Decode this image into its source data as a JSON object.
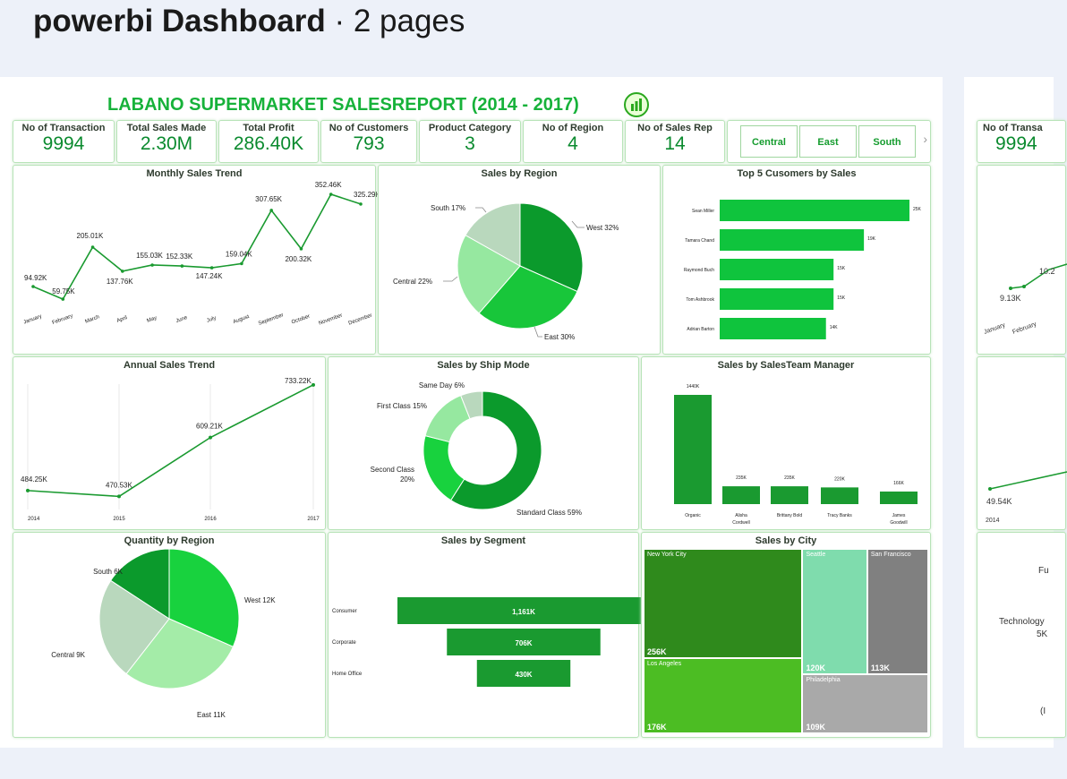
{
  "header": {
    "name": "powerbi Dashboard",
    "dot": "·",
    "pages": "2 pages"
  },
  "report": {
    "title": "LABANO SUPERMARKET SALESREPORT (2014 - 2017)"
  },
  "kpis": [
    {
      "label": "No of Transaction",
      "value": "9994"
    },
    {
      "label": "Total Sales Made",
      "value": "2.30M"
    },
    {
      "label": "Total Profit",
      "value": "286.40K"
    },
    {
      "label": "No of Customers",
      "value": "793"
    },
    {
      "label": "Product Category",
      "value": "3"
    },
    {
      "label": "No of Region",
      "value": "4"
    },
    {
      "label": "No of Sales Rep",
      "value": "14"
    }
  ],
  "slicer": [
    "Central",
    "East",
    "South"
  ],
  "slicer_arrow": "›",
  "chart_data": [
    {
      "type": "line",
      "title": "Monthly Sales Trend",
      "categories": [
        "January",
        "February",
        "March",
        "April",
        "May",
        "June",
        "July",
        "August",
        "September",
        "October",
        "November",
        "December"
      ],
      "values": [
        94.92,
        59.75,
        205.01,
        137.76,
        155.03,
        152.33,
        147.24,
        159.04,
        307.65,
        200.32,
        352.46,
        325.29
      ],
      "labels": [
        "94.92K",
        "59.75K",
        "205.01K",
        "137.76K",
        "155.03K",
        "152.33K",
        "147.24K",
        "159.04K",
        "307.65K",
        "200.32K",
        "352.46K",
        "325.29K"
      ]
    },
    {
      "type": "pie",
      "title": "Sales by Region",
      "slices": [
        {
          "name": "West",
          "pct": 32
        },
        {
          "name": "East",
          "pct": 30
        },
        {
          "name": "Central",
          "pct": 22
        },
        {
          "name": "South",
          "pct": 17
        }
      ],
      "labels": [
        "West 32%",
        "East 30%",
        "Central 22%",
        "South 17%"
      ],
      "colors": [
        "#0b9a2c",
        "#18c63a",
        "#96e8a0",
        "#b9d8bd"
      ]
    },
    {
      "type": "bar",
      "orientation": "horizontal",
      "title": "Top 5 Cusomers by Sales",
      "categories": [
        "Sean Miller",
        "Tamara Chand",
        "Raymond Buch",
        "Tom Ashbrook",
        "Adrian Barton"
      ],
      "values": [
        25,
        19,
        15,
        15,
        14
      ],
      "labels": [
        "25K",
        "19K",
        "15K",
        "15K",
        "14K"
      ]
    },
    {
      "type": "line",
      "title": "Annual Sales Trend",
      "categories": [
        "2014",
        "2015",
        "2016",
        "2017"
      ],
      "values": [
        484.25,
        470.53,
        609.21,
        733.22
      ],
      "labels": [
        "484.25K",
        "470.53K",
        "609.21K",
        "733.22K"
      ]
    },
    {
      "type": "pie",
      "variant": "donut",
      "title": "Sales by Ship Mode",
      "slices": [
        {
          "name": "Standard Class",
          "pct": 59
        },
        {
          "name": "Second Class",
          "pct": 20
        },
        {
          "name": "First Class",
          "pct": 15
        },
        {
          "name": "Same Day",
          "pct": 6
        }
      ],
      "labels": [
        "Standard Class 59%",
        "Second Class",
        "20%",
        "First Class 15%",
        "Same Day 6%"
      ],
      "colors": [
        "#0b9a2c",
        "#18d23e",
        "#96e8a0",
        "#b9d8bd"
      ]
    },
    {
      "type": "bar",
      "title": "Sales by SalesTeam Manager",
      "categories": [
        "Organic",
        "Alisha Cordwell",
        "Brittany Bold",
        "Tracy Banks",
        "James Goodwill"
      ],
      "cat_lines": [
        [
          "Organic"
        ],
        [
          "Alisha",
          "Cordwell"
        ],
        [
          "Brittany Bold"
        ],
        [
          "Tracy Banks"
        ],
        [
          "James",
          "Goodwill"
        ]
      ],
      "values": [
        1440,
        235,
        235,
        220,
        166
      ],
      "labels": [
        "1440K",
        "235K",
        "235K",
        "220K",
        "166K"
      ]
    },
    {
      "type": "pie",
      "title": "Quantity by Region",
      "slices": [
        {
          "name": "West",
          "value": 12
        },
        {
          "name": "East",
          "value": 11
        },
        {
          "name": "Central",
          "value": 9
        },
        {
          "name": "South",
          "value": 6
        }
      ],
      "labels": [
        "West 12K",
        "East 11K",
        "Central 9K",
        "South 6K"
      ],
      "colors": [
        "#18d23e",
        "#a4eca8",
        "#b9d8bd",
        "#0b9a2c"
      ]
    },
    {
      "type": "bar",
      "variant": "funnel",
      "title": "Sales by Segment",
      "categories": [
        "Consumer",
        "Corporate",
        "Home Office"
      ],
      "values": [
        1161,
        706,
        430
      ],
      "labels": [
        "1,161K",
        "706K",
        "430K"
      ]
    },
    {
      "type": "heatmap",
      "variant": "treemap",
      "title": "Sales by City",
      "cells": [
        {
          "name": "New York City",
          "value": 256,
          "label": "256K",
          "color": "#2f8a1c"
        },
        {
          "name": "Los Angeles",
          "value": 176,
          "label": "176K",
          "color": "#4cbd23"
        },
        {
          "name": "Seattle",
          "value": 120,
          "label": "120K",
          "color": "#7fdcad"
        },
        {
          "name": "San Francisco",
          "value": 113,
          "label": "113K",
          "color": "#808080"
        },
        {
          "name": "Philadelphia",
          "value": 109,
          "label": "109K",
          "color": "#a9a9a9"
        }
      ]
    }
  ],
  "peek": {
    "kpi_label": "No of Transa",
    "kpi_value": "9994",
    "vals": [
      "10.2",
      "9.13K",
      "49.54K"
    ],
    "months": [
      "January",
      "February"
    ],
    "year": "2014",
    "cat1": "Fu",
    "cat2": "Technology",
    "cat2v": "5K",
    "paren": "(I"
  }
}
